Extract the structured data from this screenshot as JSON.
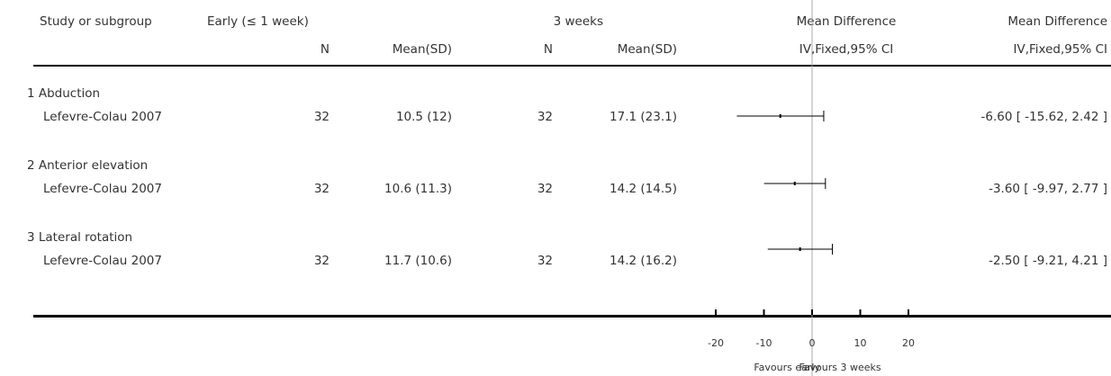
{
  "headers": {
    "study": "Study or subgroup",
    "early": "Early (≤ 1 week)",
    "late": "3 weeks",
    "md_col": "Mean Difference",
    "md_plot": "Mean Difference",
    "n": "N",
    "meansd": "Mean(SD)",
    "method": "IV,Fixed,95% CI"
  },
  "chart_data": {
    "type": "forest",
    "xlim": [
      -20,
      20
    ],
    "xticks": [
      "-20",
      "-10",
      "0",
      "10",
      "20"
    ],
    "favours_left": "Favours early",
    "favours_right": "Favours 3 weeks",
    "groups": [
      {
        "title": "1 Abduction",
        "study": "Lefevre-Colau 2007",
        "n1": "32",
        "ms1": "10.5 (12)",
        "n2": "32",
        "ms2": "17.1 (23.1)",
        "md": -6.6,
        "lo": -15.62,
        "hi": 2.42,
        "ci_text": "-6.60 [ -15.62, 2.42 ]"
      },
      {
        "title": "2 Anterior elevation",
        "study": "Lefevre-Colau 2007",
        "n1": "32",
        "ms1": "10.6 (11.3)",
        "n2": "32",
        "ms2": "14.2 (14.5)",
        "md": -3.6,
        "lo": -9.97,
        "hi": 2.77,
        "ci_text": "-3.60 [ -9.97, 2.77 ]"
      },
      {
        "title": "3 Lateral rotation",
        "study": "Lefevre-Colau 2007",
        "n1": "32",
        "ms1": "11.7 (10.6)",
        "n2": "32",
        "ms2": "14.2 (16.2)",
        "md": -2.5,
        "lo": -9.21,
        "hi": 4.21,
        "ci_text": "-2.50 [ -9.21, 4.21 ]"
      }
    ]
  }
}
